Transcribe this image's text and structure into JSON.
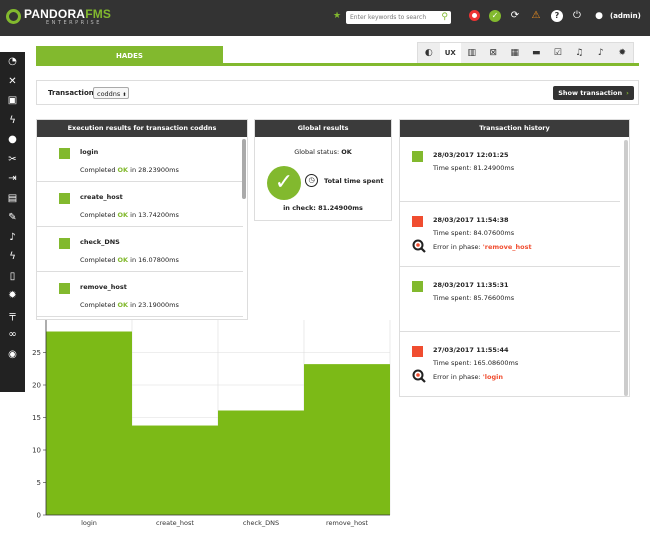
{
  "app": {
    "logo_text_1": "PANDORA",
    "logo_text_2": "FMS",
    "logo_sub": "ENTERPRISE"
  },
  "header": {
    "search_placeholder": "Enter keywords to search",
    "user": "(admin)",
    "icons": [
      "star-icon",
      "search-icon",
      "lifebuoy-icon",
      "check-icon",
      "power-icon",
      "warning-icon",
      "help-icon",
      "user-icon"
    ],
    "accent": "#82b92e"
  },
  "sidebar": {
    "icons": [
      "monitoring-icon",
      "network-icon",
      "reports-icon",
      "events-icon",
      "users-icon",
      "tools-icon",
      "login-icon",
      "agent-icon",
      "wrench-icon",
      "alert-icon",
      "bolt-icon",
      "list-icon",
      "gear-icon",
      "extension-icon",
      "link-icon",
      "pandora-icon"
    ]
  },
  "page": {
    "tab_title": "HADES",
    "toolbar_tabs": [
      "eye-icon",
      "UX",
      "book-icon",
      "chart-icon",
      "calendar-icon",
      "folder-icon",
      "clipboard-icon",
      "bell-icon",
      "bell-add-icon",
      "gear-icon"
    ]
  },
  "transaction": {
    "label": "Transaction",
    "selected": "coddns",
    "button": "Show transaction"
  },
  "exec_panel": {
    "title": "Execution results for transaction coddns",
    "rows": [
      {
        "name": "login",
        "prefix": "Completed ",
        "status": "OK",
        "suffix": " in 28.23900ms"
      },
      {
        "name": "create_host",
        "prefix": "Completed ",
        "status": "OK",
        "suffix": " in 13.74200ms"
      },
      {
        "name": "check_DNS",
        "prefix": "Completed ",
        "status": "OK",
        "suffix": " in 16.07800ms"
      },
      {
        "name": "remove_host",
        "prefix": "Completed ",
        "status": "OK",
        "suffix": " in 23.19000ms"
      }
    ]
  },
  "global_panel": {
    "title": "Global results",
    "status_label": "Global status: ",
    "status_value": "OK",
    "total_label": "Total time spent",
    "total_value": "in check: 81.24900ms"
  },
  "history_panel": {
    "title": "Transaction history",
    "rows": [
      {
        "date": "28/03/2017 12:01:25",
        "time": "Time spent: 81.24900ms",
        "error": false,
        "status_color": "#82b92e"
      },
      {
        "date": "28/03/2017 11:54:38",
        "time": "Time spent: 84.07600ms",
        "error": true,
        "error_label": "Error in phase: ",
        "phase": "'remove_host",
        "status_color": "#f04d30"
      },
      {
        "date": "28/03/2017 11:35:31",
        "time": "Time spent: 85.76600ms",
        "error": false,
        "status_color": "#82b92e"
      },
      {
        "date": "27/03/2017 11:55:44",
        "time": "Time spent: 165.08600ms",
        "error": true,
        "error_label": "Error in phase: ",
        "phase": "'login",
        "status_color": "#f04d30"
      }
    ]
  },
  "chart_data": {
    "type": "area",
    "categories": [
      "login",
      "create_host",
      "check_DNS",
      "remove_host"
    ],
    "values": [
      28.239,
      13.742,
      16.078,
      23.19
    ],
    "ylim": [
      0,
      30
    ],
    "yticks": [
      0,
      5,
      10,
      15,
      20,
      25
    ],
    "grid": true,
    "color": "#7cba17"
  }
}
